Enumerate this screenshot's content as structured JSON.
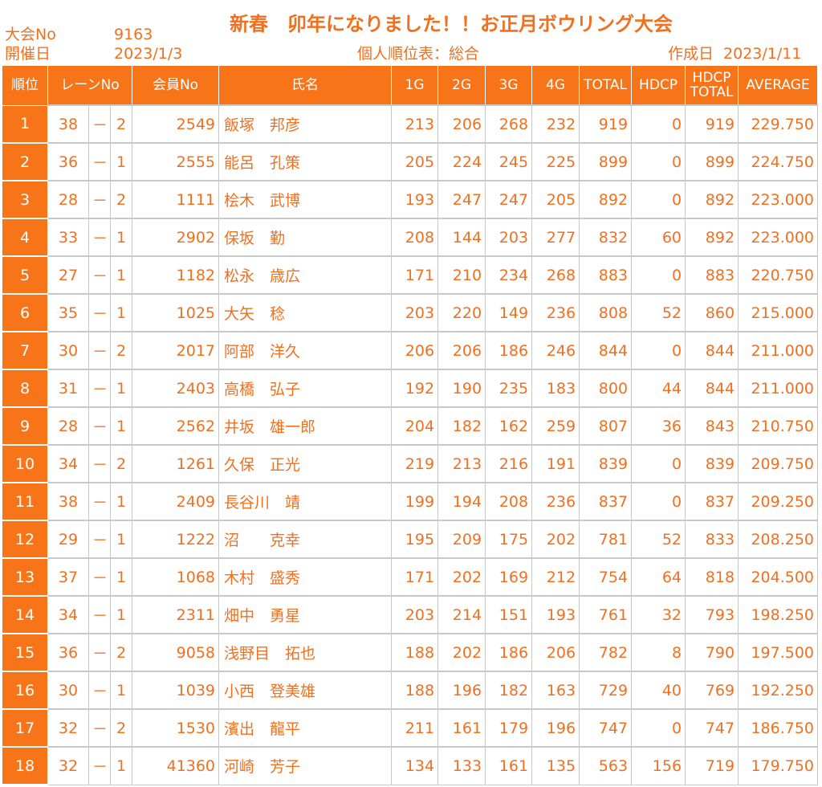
{
  "header": {
    "tournament_no_label": "大会No",
    "tournament_no": "9163",
    "date_label": "開催日",
    "date": "2023/1/3",
    "title": "新春　卯年になりました！！お正月ボウリング大会",
    "subtitle": "個人順位表：総合",
    "created_label": "作成日",
    "created_date": "2023/1/11"
  },
  "columns": {
    "rank": "順位",
    "lane": "レーンNo",
    "member": "会員No",
    "name": "氏名",
    "g1": "1G",
    "g2": "2G",
    "g3": "3G",
    "g4": "4G",
    "total": "TOTAL",
    "hdcp": "HDCP",
    "hdcp_total_1": "HDCP",
    "hdcp_total_2": "TOTAL",
    "average": "AVERAGE"
  },
  "rows": [
    {
      "rank": "1",
      "lane": "38",
      "dash": "－",
      "sub": "2",
      "member": "2549",
      "name": "飯塚　邦彦",
      "g1": "213",
      "g2": "206",
      "g3": "268",
      "g4": "232",
      "total": "919",
      "hdcp": "0",
      "hdcp_total": "919",
      "average": "229.750"
    },
    {
      "rank": "2",
      "lane": "36",
      "dash": "－",
      "sub": "1",
      "member": "2555",
      "name": "能呂　孔策",
      "g1": "205",
      "g2": "224",
      "g3": "245",
      "g4": "225",
      "total": "899",
      "hdcp": "0",
      "hdcp_total": "899",
      "average": "224.750"
    },
    {
      "rank": "3",
      "lane": "28",
      "dash": "－",
      "sub": "2",
      "member": "1111",
      "name": "桧木　武博",
      "g1": "193",
      "g2": "247",
      "g3": "247",
      "g4": "205",
      "total": "892",
      "hdcp": "0",
      "hdcp_total": "892",
      "average": "223.000"
    },
    {
      "rank": "4",
      "lane": "33",
      "dash": "－",
      "sub": "1",
      "member": "2902",
      "name": "保坂　勤",
      "g1": "208",
      "g2": "144",
      "g3": "203",
      "g4": "277",
      "total": "832",
      "hdcp": "60",
      "hdcp_total": "892",
      "average": "223.000"
    },
    {
      "rank": "5",
      "lane": "27",
      "dash": "－",
      "sub": "1",
      "member": "1182",
      "name": "松永　歳広",
      "g1": "171",
      "g2": "210",
      "g3": "234",
      "g4": "268",
      "total": "883",
      "hdcp": "0",
      "hdcp_total": "883",
      "average": "220.750"
    },
    {
      "rank": "6",
      "lane": "35",
      "dash": "－",
      "sub": "1",
      "member": "1025",
      "name": "大矢　稔",
      "g1": "203",
      "g2": "220",
      "g3": "149",
      "g4": "236",
      "total": "808",
      "hdcp": "52",
      "hdcp_total": "860",
      "average": "215.000"
    },
    {
      "rank": "7",
      "lane": "30",
      "dash": "－",
      "sub": "2",
      "member": "2017",
      "name": "阿部　洋久",
      "g1": "206",
      "g2": "206",
      "g3": "186",
      "g4": "246",
      "total": "844",
      "hdcp": "0",
      "hdcp_total": "844",
      "average": "211.000"
    },
    {
      "rank": "8",
      "lane": "31",
      "dash": "－",
      "sub": "1",
      "member": "2403",
      "name": "高橋　弘子",
      "g1": "192",
      "g2": "190",
      "g3": "235",
      "g4": "183",
      "total": "800",
      "hdcp": "44",
      "hdcp_total": "844",
      "average": "211.000"
    },
    {
      "rank": "9",
      "lane": "28",
      "dash": "－",
      "sub": "1",
      "member": "2562",
      "name": "井坂　雄一郎",
      "g1": "204",
      "g2": "182",
      "g3": "162",
      "g4": "259",
      "total": "807",
      "hdcp": "36",
      "hdcp_total": "843",
      "average": "210.750"
    },
    {
      "rank": "10",
      "lane": "34",
      "dash": "－",
      "sub": "2",
      "member": "1261",
      "name": "久保　正光",
      "g1": "219",
      "g2": "213",
      "g3": "216",
      "g4": "191",
      "total": "839",
      "hdcp": "0",
      "hdcp_total": "839",
      "average": "209.750"
    },
    {
      "rank": "11",
      "lane": "38",
      "dash": "－",
      "sub": "1",
      "member": "2409",
      "name": "長谷川　靖",
      "g1": "199",
      "g2": "194",
      "g3": "208",
      "g4": "236",
      "total": "837",
      "hdcp": "0",
      "hdcp_total": "837",
      "average": "209.250"
    },
    {
      "rank": "12",
      "lane": "29",
      "dash": "－",
      "sub": "1",
      "member": "1222",
      "name": "沼　　克幸",
      "g1": "195",
      "g2": "209",
      "g3": "175",
      "g4": "202",
      "total": "781",
      "hdcp": "52",
      "hdcp_total": "833",
      "average": "208.250"
    },
    {
      "rank": "13",
      "lane": "37",
      "dash": "－",
      "sub": "1",
      "member": "1068",
      "name": "木村　盛秀",
      "g1": "171",
      "g2": "202",
      "g3": "169",
      "g4": "212",
      "total": "754",
      "hdcp": "64",
      "hdcp_total": "818",
      "average": "204.500"
    },
    {
      "rank": "14",
      "lane": "34",
      "dash": "－",
      "sub": "1",
      "member": "2311",
      "name": "畑中　勇星",
      "g1": "203",
      "g2": "214",
      "g3": "151",
      "g4": "193",
      "total": "761",
      "hdcp": "32",
      "hdcp_total": "793",
      "average": "198.250"
    },
    {
      "rank": "15",
      "lane": "36",
      "dash": "－",
      "sub": "2",
      "member": "9058",
      "name": "浅野目　拓也",
      "g1": "188",
      "g2": "202",
      "g3": "186",
      "g4": "206",
      "total": "782",
      "hdcp": "8",
      "hdcp_total": "790",
      "average": "197.500"
    },
    {
      "rank": "16",
      "lane": "30",
      "dash": "－",
      "sub": "1",
      "member": "1039",
      "name": "小西　登美雄",
      "g1": "188",
      "g2": "196",
      "g3": "182",
      "g4": "163",
      "total": "729",
      "hdcp": "40",
      "hdcp_total": "769",
      "average": "192.250"
    },
    {
      "rank": "17",
      "lane": "32",
      "dash": "－",
      "sub": "2",
      "member": "1530",
      "name": "濱出　龍平",
      "g1": "211",
      "g2": "161",
      "g3": "179",
      "g4": "196",
      "total": "747",
      "hdcp": "0",
      "hdcp_total": "747",
      "average": "186.750"
    },
    {
      "rank": "18",
      "lane": "32",
      "dash": "－",
      "sub": "1",
      "member": "41360",
      "name": "河崎　芳子",
      "g1": "134",
      "g2": "133",
      "g3": "161",
      "g4": "135",
      "total": "563",
      "hdcp": "156",
      "hdcp_total": "719",
      "average": "179.750"
    }
  ]
}
